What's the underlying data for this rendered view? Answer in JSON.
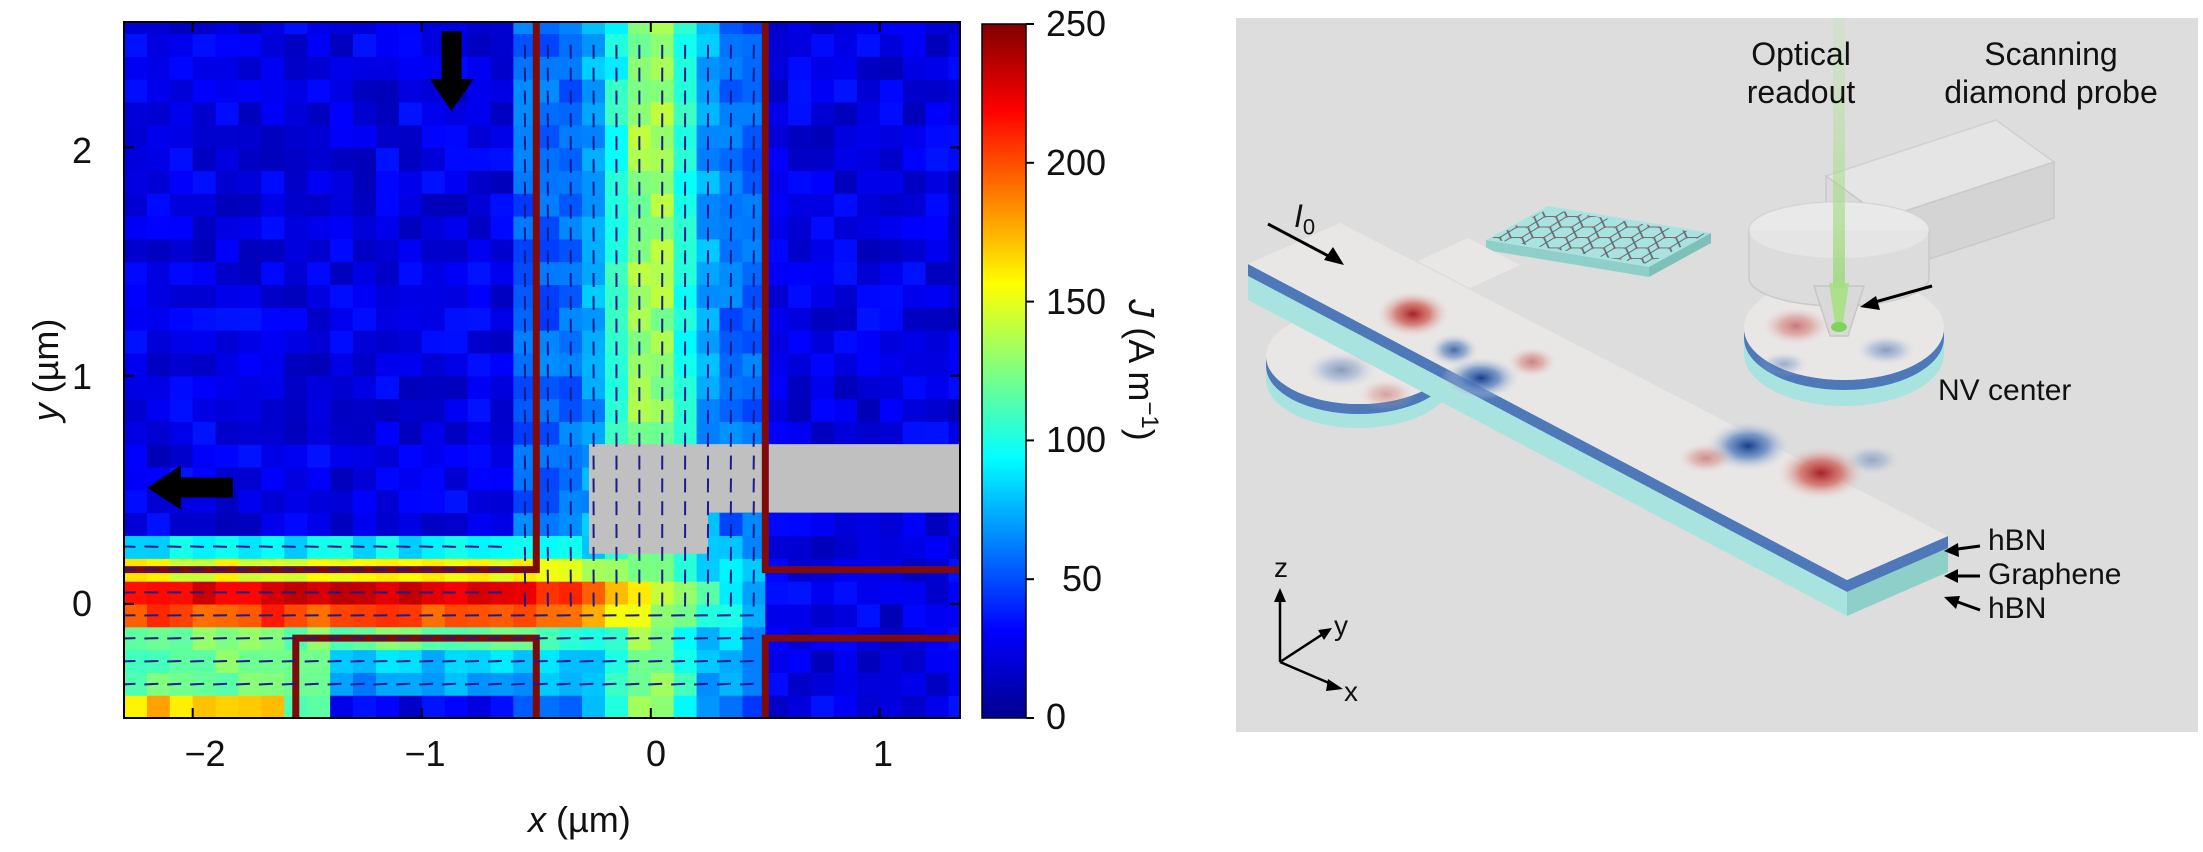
{
  "heatmap": {
    "xlabel_var": "x",
    "xlabel_unit": " (µm)",
    "ylabel_var": "y",
    "ylabel_unit": " (µm)",
    "x_ticks": [
      "−2",
      "−1",
      "0",
      "1"
    ],
    "y_ticks": [
      "2",
      "1",
      "0"
    ],
    "colorbar": {
      "ticks": [
        "250",
        "200",
        "150",
        "100",
        "50",
        "0"
      ],
      "label_var": "J",
      "label_unit": " (A m",
      "label_exp": "−1",
      "label_close": ")"
    }
  },
  "chart_data": {
    "type": "heatmap",
    "title": "",
    "xlabel": "x (µm)",
    "ylabel": "y (µm)",
    "xlim": [
      -2.3,
      1.35
    ],
    "ylim": [
      -0.5,
      2.55
    ],
    "x_ticks": [
      -2,
      -1,
      0,
      1
    ],
    "y_ticks": [
      0,
      1,
      2
    ],
    "colorbar": {
      "label": "J (A m−1)",
      "range": [
        0,
        250
      ],
      "ticks": [
        0,
        50,
        100,
        150,
        200,
        250
      ],
      "colormap": "jet"
    },
    "grid": false
  },
  "diagram": {
    "labels": {
      "optical_readout_1": "Optical",
      "optical_readout_2": "readout",
      "probe_1": "Scanning",
      "probe_2": "diamond probe",
      "current_main": "I",
      "current_sub": "0",
      "nv_center": "NV center",
      "hbn_top": "hBN",
      "graphene": "Graphene",
      "hbn_bottom": "hBN",
      "axis_x": "x",
      "axis_y": "y",
      "axis_z": "z"
    },
    "colors": {
      "background": "#dddddd",
      "hbn": "#a9e3df",
      "graphene": "#4e78b8",
      "top_surface": "#e9e7e6",
      "hotspot_red": "#b2302c",
      "hotspot_blue": "#1f57a5",
      "laser": "#a8e07a"
    }
  }
}
